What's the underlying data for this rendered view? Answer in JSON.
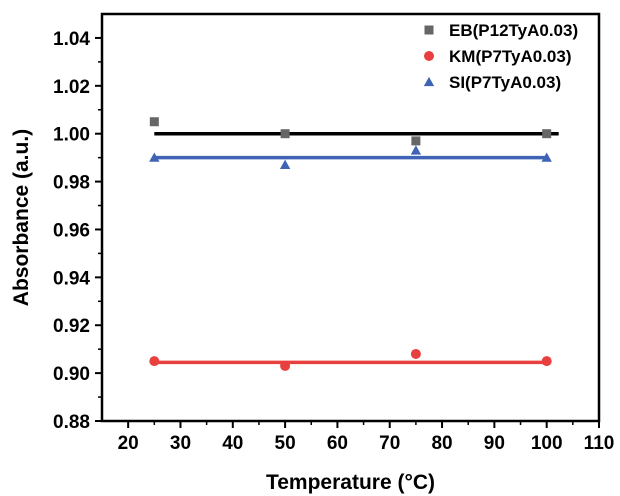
{
  "chart_data": {
    "type": "scatter",
    "title": "",
    "xlabel": "Temperature (°C)",
    "ylabel": "Absorbance (a.u.)",
    "xlim": [
      15,
      110
    ],
    "ylim": [
      0.88,
      1.05
    ],
    "xticks": [
      20,
      30,
      40,
      50,
      60,
      70,
      80,
      90,
      100,
      110
    ],
    "yticks": [
      0.88,
      0.9,
      0.92,
      0.94,
      0.96,
      0.98,
      1.0,
      1.02,
      1.04
    ],
    "x_tick_labels": [
      "20",
      "30",
      "40",
      "50",
      "60",
      "70",
      "80",
      "90",
      "100",
      "110"
    ],
    "y_tick_labels": [
      "0.88",
      "0.90",
      "0.92",
      "0.94",
      "0.96",
      "0.98",
      "1.00",
      "1.02",
      "1.04"
    ],
    "grid": false,
    "legend_position": "top-right",
    "series": [
      {
        "name": "EB(P12TyA0.03)",
        "marker": "square",
        "color": "#666666",
        "fit_color": "#000000",
        "x": [
          25,
          50,
          75,
          100
        ],
        "y": [
          1.005,
          1.0,
          0.997,
          1.0
        ],
        "fit_y": 1.0
      },
      {
        "name": "KM(P7TyA0.03)",
        "marker": "circle",
        "color": "#e8403f",
        "fit_color": "#e8403f",
        "x": [
          25,
          50,
          75,
          100
        ],
        "y": [
          0.905,
          0.903,
          0.908,
          0.905
        ],
        "fit_y": 0.9045
      },
      {
        "name": "SI(P7TyA0.03)",
        "marker": "triangle",
        "color": "#3f63b5",
        "fit_color": "#3f63b5",
        "x": [
          25,
          50,
          75,
          100
        ],
        "y": [
          0.99,
          0.987,
          0.993,
          0.99
        ],
        "fit_y": 0.99
      }
    ]
  }
}
